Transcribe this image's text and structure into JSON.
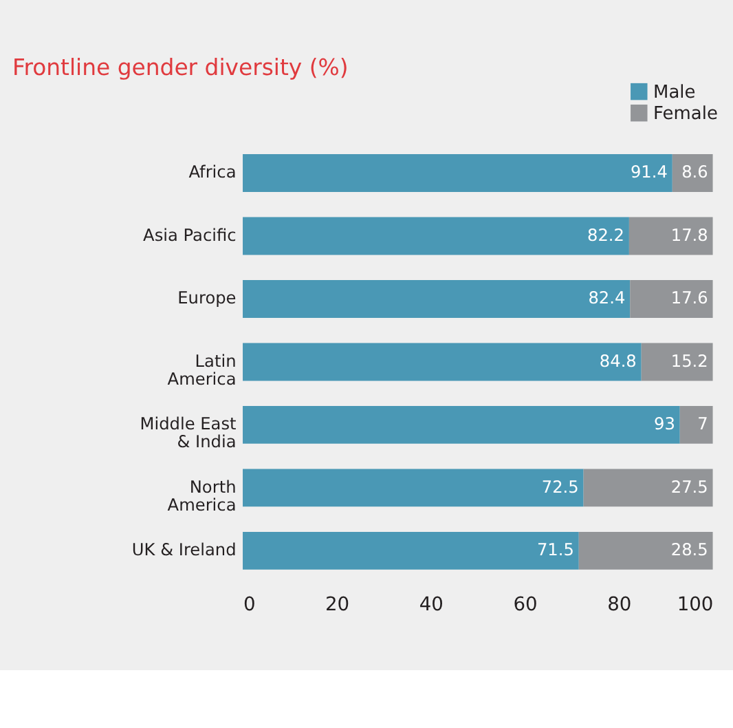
{
  "chart_data": {
    "type": "bar",
    "orientation": "horizontal",
    "stacked": true,
    "title": "Frontline gender diversity (%)",
    "categories": [
      "Africa",
      "Asia Pacific",
      "Europe",
      "Latin America",
      "Middle East & India",
      "North America",
      "UK & Ireland"
    ],
    "series": [
      {
        "name": "Male",
        "color": "#4a98b5",
        "values": [
          91.4,
          82.2,
          82.4,
          84.8,
          93,
          72.5,
          71.5
        ]
      },
      {
        "name": "Female",
        "color": "#939598",
        "values": [
          8.6,
          17.8,
          17.6,
          15.2,
          7,
          27.5,
          28.5
        ]
      }
    ],
    "xlim": [
      0,
      100
    ],
    "xticks": [
      0,
      20,
      40,
      60,
      80,
      100
    ],
    "grid": false,
    "legend": "top right",
    "data_labels": true
  }
}
